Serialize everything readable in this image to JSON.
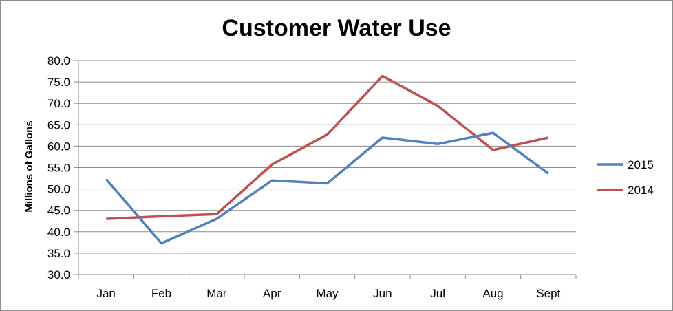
{
  "chart_data": {
    "type": "line",
    "title": "Customer Water Use",
    "xlabel": "",
    "ylabel": "Millions of Gallons",
    "categories": [
      "Jan",
      "Feb",
      "Mar",
      "Apr",
      "May",
      "Jun",
      "Jul",
      "Aug",
      "Sept"
    ],
    "y_ticks": [
      "30.0",
      "35.0",
      "40.0",
      "45.0",
      "50.0",
      "55.0",
      "60.0",
      "65.0",
      "70.0",
      "75.0",
      "80.0"
    ],
    "ylim": [
      30,
      80
    ],
    "ytick_step": 5,
    "grid": true,
    "legend_position": "right",
    "series": [
      {
        "name": "2015",
        "color": "#4f81bd",
        "values": [
          52.3,
          37.3,
          43.0,
          52.0,
          51.3,
          62.0,
          60.5,
          63.1,
          53.6
        ]
      },
      {
        "name": "2014",
        "color": "#c0504d",
        "values": [
          43.0,
          43.6,
          44.1,
          55.7,
          62.7,
          76.4,
          69.4,
          59.1,
          62.0
        ]
      }
    ]
  }
}
